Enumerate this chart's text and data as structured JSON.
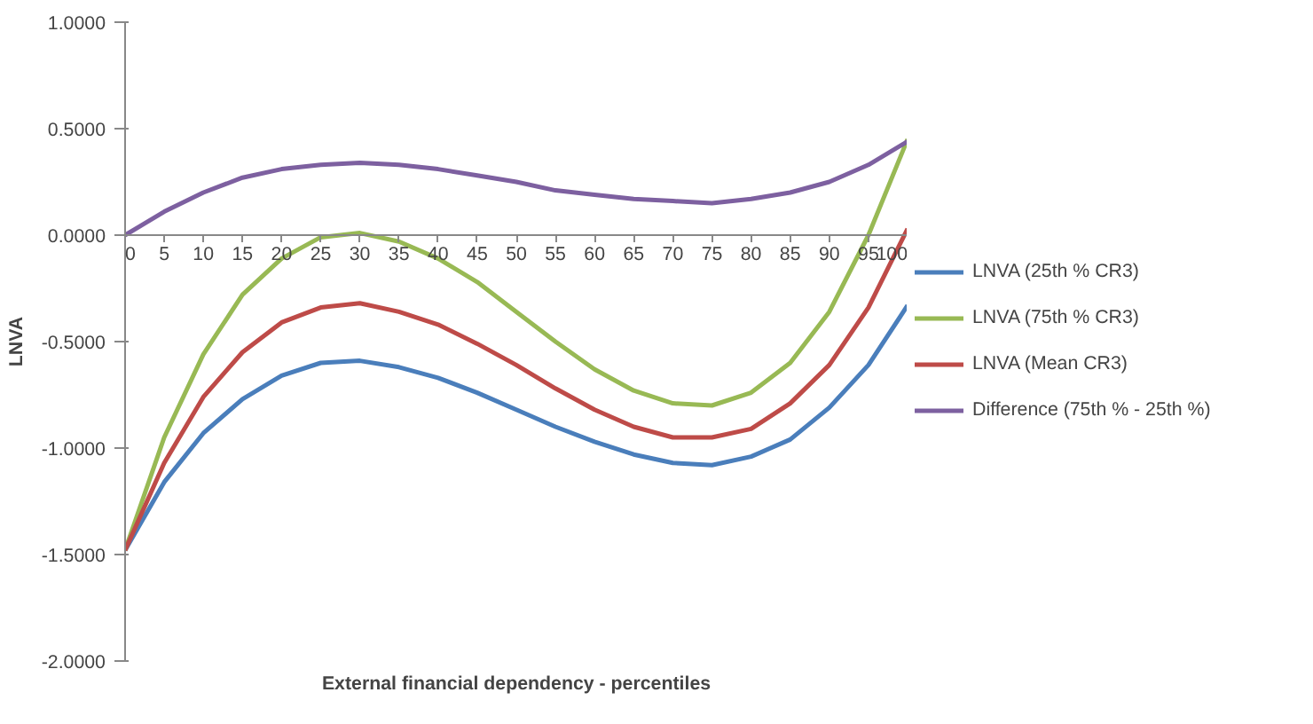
{
  "chart_data": {
    "type": "line",
    "xlabel": "External financial dependency - percentiles",
    "ylabel": "LNVA",
    "x": [
      0,
      5,
      10,
      15,
      20,
      25,
      30,
      35,
      40,
      45,
      50,
      55,
      60,
      65,
      70,
      75,
      80,
      85,
      90,
      95,
      100
    ],
    "series": [
      {
        "name": "LNVA (25th % CR3)",
        "color": "#4a7ebb",
        "values": [
          -1.48,
          -1.16,
          -0.93,
          -0.77,
          -0.66,
          -0.6,
          -0.59,
          -0.62,
          -0.67,
          -0.74,
          -0.82,
          -0.9,
          -0.97,
          -1.03,
          -1.07,
          -1.08,
          -1.04,
          -0.96,
          -0.81,
          -0.61,
          -0.33
        ]
      },
      {
        "name": "LNVA (75th % CR3)",
        "color": "#98b954",
        "values": [
          -1.48,
          -0.95,
          -0.56,
          -0.28,
          -0.11,
          -0.01,
          0.01,
          -0.03,
          -0.11,
          -0.22,
          -0.36,
          -0.5,
          -0.63,
          -0.73,
          -0.79,
          -0.8,
          -0.74,
          -0.6,
          -0.36,
          0.0,
          0.45
        ]
      },
      {
        "name": "LNVA (Mean CR3)",
        "color": "#be4b48",
        "values": [
          -1.48,
          -1.07,
          -0.76,
          -0.55,
          -0.41,
          -0.34,
          -0.32,
          -0.36,
          -0.42,
          -0.51,
          -0.61,
          -0.72,
          -0.82,
          -0.9,
          -0.95,
          -0.95,
          -0.91,
          -0.79,
          -0.61,
          -0.34,
          0.03
        ]
      },
      {
        "name": "Difference (75th % - 25th %)",
        "color": "#7d60a0",
        "values": [
          0.0,
          0.11,
          0.2,
          0.27,
          0.31,
          0.33,
          0.34,
          0.33,
          0.31,
          0.28,
          0.25,
          0.21,
          0.19,
          0.17,
          0.16,
          0.15,
          0.17,
          0.2,
          0.25,
          0.33,
          0.44
        ]
      }
    ],
    "xlim": [
      0,
      100
    ],
    "xticks": [
      0,
      5,
      10,
      15,
      20,
      25,
      30,
      35,
      40,
      45,
      50,
      55,
      60,
      65,
      70,
      75,
      80,
      85,
      90,
      95,
      100
    ],
    "ylim": [
      -2,
      1
    ],
    "yticks": [
      {
        "value": 1,
        "label": "1.0000"
      },
      {
        "value": 0.5,
        "label": "0.5000"
      },
      {
        "value": 0,
        "label": "0.0000"
      },
      {
        "value": -0.5,
        "label": "-0.5000"
      },
      {
        "value": -1,
        "label": "-1.0000"
      },
      {
        "value": -1.5,
        "label": "-1.5000"
      },
      {
        "value": -2,
        "label": "-2.0000"
      }
    ],
    "grid": false,
    "legend": "right",
    "marker": "none",
    "line_style": "solid"
  }
}
